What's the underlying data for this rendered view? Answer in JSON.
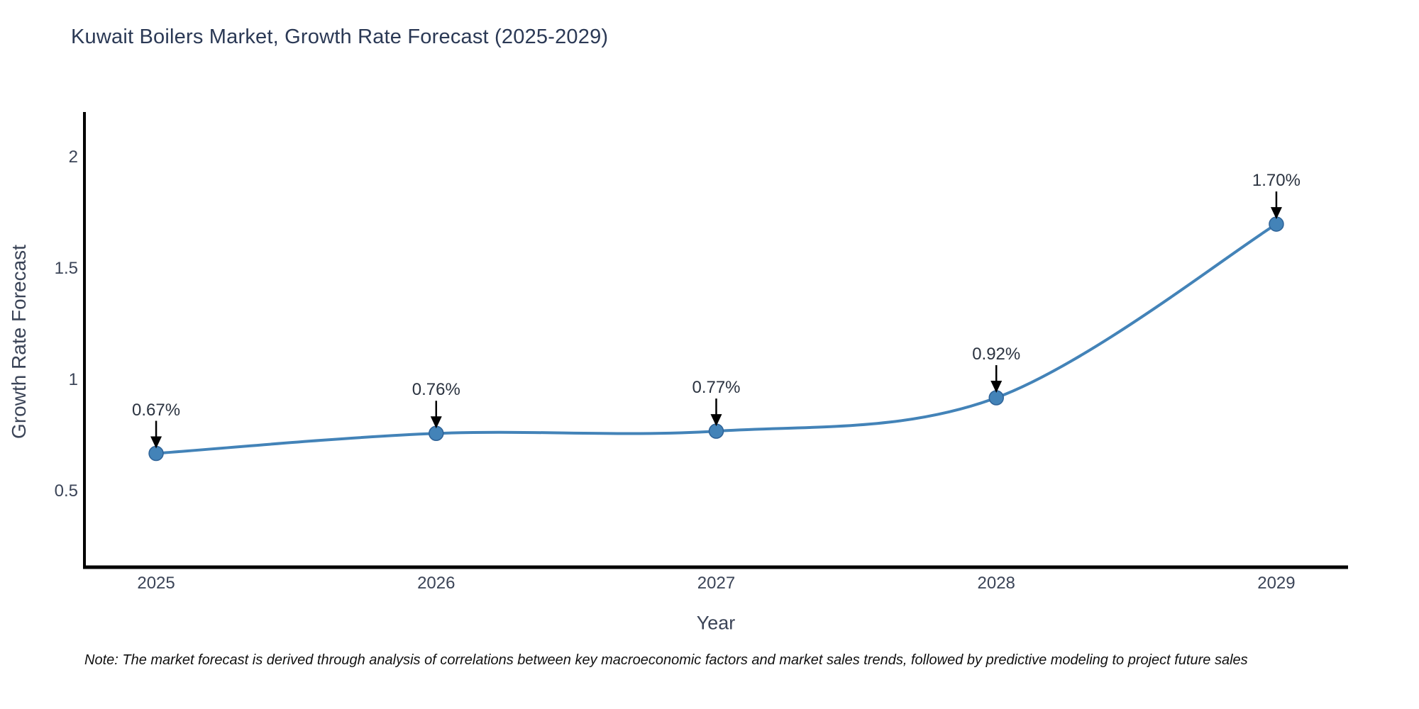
{
  "title": "Kuwait Boilers Market, Growth Rate Forecast (2025-2029)",
  "note": "Note: The market forecast is derived through analysis of correlations between key macroeconomic factors and market sales trends, followed by predictive modeling to project future sales",
  "chart_data": {
    "type": "line",
    "title": "Kuwait Boilers Market, Growth Rate Forecast (2025-2029)",
    "xlabel": "Year",
    "ylabel": "Growth Rate Forecast",
    "x": [
      2025,
      2026,
      2027,
      2028,
      2029
    ],
    "values": [
      0.67,
      0.76,
      0.77,
      0.92,
      1.7
    ],
    "point_labels": [
      "0.67%",
      "0.76%",
      "0.77%",
      "0.92%",
      "1.70%"
    ],
    "xtick_labels": [
      "2025",
      "2026",
      "2027",
      "2028",
      "2029"
    ],
    "yticks": [
      0.5,
      1,
      1.5,
      2
    ],
    "ytick_labels": [
      "0.5",
      "1",
      "1.5",
      "2"
    ],
    "xlim": [
      2024.744,
      2029.256
    ],
    "ylim": [
      0.159,
      2.197
    ],
    "line_shape": "spline",
    "markers": true,
    "grid": false,
    "legend_position": "none",
    "annotation_arrows": true
  },
  "colors": {
    "line": "#4383b8",
    "marker": "#4383b8",
    "marker_edge": "#2f6398",
    "axis": "#000000",
    "arrow": "#000000",
    "title_text": "#2b3955",
    "tick_text": "#3b4457",
    "annotation_text": "#2b3340",
    "note_text": "#111111",
    "background": "#ffffff"
  }
}
